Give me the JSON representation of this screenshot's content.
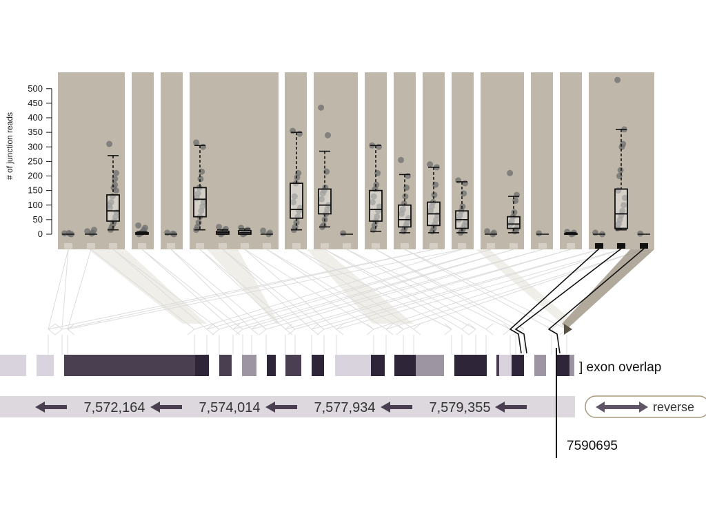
{
  "y_axis": {
    "label": "# of junction reads",
    "ticks": [
      "0",
      "50",
      "100",
      "150",
      "200",
      "250",
      "300",
      "350",
      "400",
      "450",
      "500"
    ],
    "max": 520
  },
  "colors": {
    "panel": "#bfb7a9",
    "exon_dark": "#4a3f50",
    "exon_darkest": "#2f2538",
    "exon_mid": "#9e95a3",
    "exon_light": "#d8d3dc",
    "track": "#dcd8de",
    "arrow": "#4a3f50",
    "point": "#6f6f6f",
    "guide": "#dcdcdc",
    "highlight": "#111111"
  },
  "legend": {
    "exon_overlap": "] exon overlap"
  },
  "axis_labels": [
    "7,572,164",
    "7,574,014",
    "7,577,934",
    "7,579,355"
  ],
  "reverse_button": {
    "label": "reverse"
  },
  "selected_position": "7590695",
  "chart_data": {
    "type": "boxplot",
    "ylabel": "# of junction reads",
    "ylim": [
      0,
      520
    ],
    "junctions": [
      {
        "id": "j1",
        "min": 0,
        "q1": 0,
        "median": 0,
        "q3": 0,
        "max": 0,
        "points": [
          3,
          0,
          1,
          4
        ]
      },
      {
        "id": "j2",
        "min": 0,
        "q1": 0,
        "median": 0,
        "q3": 0,
        "max": 0,
        "points": [
          10,
          15,
          5,
          2
        ]
      },
      {
        "id": "j3",
        "min": 15,
        "q1": 45,
        "median": 80,
        "q3": 135,
        "max": 270,
        "points": [
          310,
          210,
          190,
          160,
          130,
          110,
          90,
          75,
          60,
          45,
          35,
          25,
          15,
          100,
          150,
          170
        ]
      },
      {
        "id": "j4",
        "min": 0,
        "q1": 0,
        "median": 2,
        "q3": 5,
        "max": 8,
        "points": [
          30,
          22,
          15,
          8,
          5,
          2,
          0
        ]
      },
      {
        "id": "j5",
        "min": 0,
        "q1": 0,
        "median": 0,
        "q3": 0,
        "max": 0,
        "points": [
          5,
          0,
          2
        ]
      },
      {
        "id": "j6",
        "min": 15,
        "q1": 60,
        "median": 120,
        "q3": 160,
        "max": 305,
        "points": [
          315,
          300,
          215,
          190,
          160,
          140,
          125,
          110,
          95,
          80,
          60,
          40,
          25,
          15
        ]
      },
      {
        "id": "j7",
        "min": 0,
        "q1": 0,
        "median": 5,
        "q3": 10,
        "max": 15,
        "points": [
          25,
          18,
          12,
          8,
          3,
          0
        ]
      },
      {
        "id": "j8",
        "min": 0,
        "q1": 0,
        "median": 5,
        "q3": 12,
        "max": 18,
        "points": [
          22,
          15,
          10,
          5,
          2,
          0
        ]
      },
      {
        "id": "j9",
        "min": 0,
        "q1": 0,
        "median": 0,
        "q3": 0,
        "max": 0,
        "points": [
          12,
          5,
          0
        ]
      },
      {
        "id": "j10",
        "min": 15,
        "q1": 55,
        "median": 85,
        "q3": 175,
        "max": 350,
        "points": [
          355,
          345,
          210,
          195,
          175,
          130,
          110,
          90,
          80,
          60,
          40,
          25,
          15
        ]
      },
      {
        "id": "j11",
        "min": 25,
        "q1": 70,
        "median": 100,
        "q3": 155,
        "max": 285,
        "points": [
          435,
          340,
          215,
          160,
          150,
          140,
          120,
          100,
          85,
          70,
          50,
          30,
          25
        ]
      },
      {
        "id": "j12",
        "min": 0,
        "q1": 0,
        "median": 0,
        "q3": 0,
        "max": 0,
        "points": [
          3
        ]
      },
      {
        "id": "j13",
        "min": 10,
        "q1": 45,
        "median": 85,
        "q3": 150,
        "max": 305,
        "points": [
          305,
          300,
          210,
          170,
          155,
          130,
          110,
          95,
          80,
          60,
          45,
          30,
          15
        ]
      },
      {
        "id": "j14",
        "min": 5,
        "q1": 25,
        "median": 50,
        "q3": 100,
        "max": 205,
        "points": [
          255,
          200,
          160,
          130,
          105,
          85,
          70,
          55,
          40,
          30,
          20,
          10
        ]
      },
      {
        "id": "j15",
        "min": 5,
        "q1": 30,
        "median": 70,
        "q3": 110,
        "max": 230,
        "points": [
          240,
          230,
          170,
          135,
          110,
          95,
          80,
          65,
          50,
          35,
          20,
          10
        ]
      },
      {
        "id": "j16",
        "min": 5,
        "q1": 20,
        "median": 50,
        "q3": 80,
        "max": 180,
        "points": [
          185,
          175,
          140,
          95,
          80,
          65,
          50,
          40,
          30,
          20,
          10,
          5
        ]
      },
      {
        "id": "j17",
        "min": 0,
        "q1": 0,
        "median": 0,
        "q3": 0,
        "max": 0,
        "points": [
          10,
          5,
          0
        ]
      },
      {
        "id": "j18",
        "min": 5,
        "q1": 20,
        "median": 35,
        "q3": 60,
        "max": 130,
        "points": [
          210,
          135,
          115,
          75,
          60,
          45,
          35,
          25,
          15,
          10
        ]
      },
      {
        "id": "j19",
        "min": 0,
        "q1": 0,
        "median": 0,
        "q3": 0,
        "max": 0,
        "points": [
          3
        ]
      },
      {
        "id": "j20",
        "min": 0,
        "q1": 0,
        "median": 0,
        "q3": 2,
        "max": 5,
        "points": [
          8,
          5,
          2,
          0
        ]
      },
      {
        "id": "j21",
        "min": 0,
        "q1": 0,
        "median": 0,
        "q3": 0,
        "max": 0,
        "points": [
          5,
          0
        ]
      },
      {
        "id": "j22",
        "min": 15,
        "q1": 20,
        "median": 70,
        "q3": 155,
        "max": 360,
        "points": [
          530,
          360,
          310,
          300,
          220,
          200,
          150,
          125,
          100,
          80,
          65,
          50,
          35,
          20
        ]
      },
      {
        "id": "j23",
        "min": 0,
        "q1": 0,
        "median": 0,
        "q3": 0,
        "max": 0,
        "points": [
          2
        ]
      }
    ]
  }
}
